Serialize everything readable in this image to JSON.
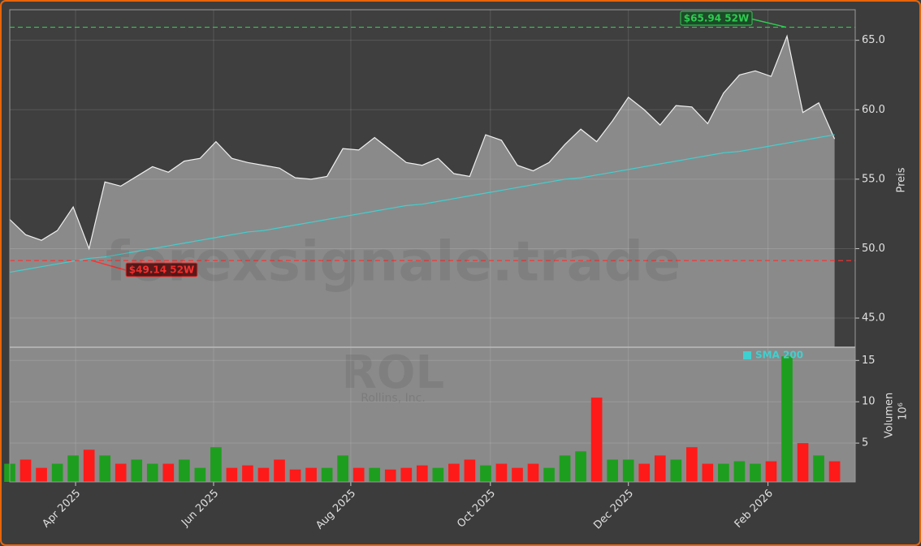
{
  "chart_data": {
    "type": "line",
    "watermark": "forexsignale.trade",
    "ticker": "ROL",
    "company": "Rollins, Inc.",
    "ylabel": "Preis",
    "y2label": "Volumen",
    "y2label_unit": "10⁶",
    "legend": "SMA 200",
    "grid": true,
    "x": [
      0,
      1,
      2,
      3,
      4,
      5,
      6,
      7,
      8,
      9,
      10,
      11,
      12,
      13,
      14,
      15,
      16,
      17,
      18,
      19,
      20,
      21,
      22,
      23,
      24,
      25,
      26,
      27,
      28,
      29,
      30,
      31,
      32,
      33,
      34,
      35,
      36,
      37,
      38,
      39,
      40,
      41,
      42,
      43,
      44,
      45,
      46,
      47,
      48,
      49,
      50,
      51,
      52
    ],
    "xlim": [
      0,
      53.3
    ],
    "xticks": [
      {
        "value": 4.15,
        "label": "Apr 2025"
      },
      {
        "value": 12.85,
        "label": "Jun 2025"
      },
      {
        "value": 21.5,
        "label": "Aug 2025"
      },
      {
        "value": 30.3,
        "label": "Oct 2025"
      },
      {
        "value": 39.0,
        "label": "Dec 2025"
      },
      {
        "value": 47.8,
        "label": "Feb 2026"
      }
    ],
    "ylim": [
      42.9,
      67.2
    ],
    "yticks": [
      {
        "value": 45,
        "label": "45.0"
      },
      {
        "value": 50,
        "label": "50.0"
      },
      {
        "value": 55,
        "label": "55.0"
      },
      {
        "value": 60,
        "label": "60.0"
      },
      {
        "value": 65,
        "label": "65.0"
      }
    ],
    "y2lim": [
      0.3,
      16.6
    ],
    "y2ticks": [
      5,
      10,
      15
    ],
    "up_color": "#1e9e1e",
    "down_color": "#ff1a1a",
    "series": [
      {
        "name": "Close",
        "color": "#f0f0f0",
        "area_color": "#8a8a8a",
        "values": [
          52.1,
          51.0,
          50.6,
          51.3,
          53.0,
          50.0,
          54.8,
          54.5,
          55.2,
          55.9,
          55.5,
          56.3,
          56.5,
          57.7,
          56.5,
          56.2,
          56.0,
          55.8,
          55.1,
          55.0,
          55.2,
          57.2,
          57.1,
          58.0,
          57.1,
          56.2,
          56.0,
          56.5,
          55.4,
          55.2,
          58.2,
          57.8,
          56.0,
          55.6,
          56.2,
          57.5,
          58.6,
          57.7,
          59.2,
          60.9,
          60.0,
          58.9,
          60.3,
          60.2,
          59.0,
          61.2,
          62.5,
          62.8,
          62.4,
          65.3,
          59.8,
          60.5,
          57.9
        ]
      },
      {
        "name": "SMA 200",
        "color": "#40d0d0",
        "values": [
          48.3,
          48.5,
          48.7,
          48.9,
          49.1,
          49.3,
          49.4,
          49.6,
          49.8,
          50.0,
          50.2,
          50.4,
          50.6,
          50.8,
          51.0,
          51.2,
          51.3,
          51.5,
          51.7,
          51.9,
          52.1,
          52.3,
          52.5,
          52.7,
          52.9,
          53.1,
          53.2,
          53.4,
          53.6,
          53.8,
          54.0,
          54.2,
          54.4,
          54.6,
          54.8,
          55.0,
          55.1,
          55.3,
          55.5,
          55.7,
          55.9,
          56.1,
          56.3,
          56.5,
          56.7,
          56.9,
          57.0,
          57.2,
          57.4,
          57.6,
          57.8,
          58.0,
          58.2
        ]
      },
      {
        "name": "Volumen",
        "axis": "y2",
        "values": [
          2.5,
          3,
          2,
          2.5,
          3.5,
          4.2,
          3.5,
          2.5,
          3,
          2.5,
          2.5,
          3,
          2,
          4.5,
          2,
          2.3,
          2,
          3,
          1.8,
          2,
          2,
          3.5,
          2,
          2,
          1.8,
          2,
          2.3,
          2,
          2.5,
          3,
          2.3,
          2.5,
          2,
          2.5,
          2,
          3.5,
          4,
          10.5,
          3,
          3,
          2.5,
          3.5,
          3,
          4.5,
          2.5,
          2.5,
          2.8,
          2.5,
          2.8,
          15.5,
          5,
          3.5,
          2.8
        ]
      }
    ],
    "annotations": [
      {
        "text": "$65.94 52W",
        "value": 65.94,
        "color": "#2ecc50"
      },
      {
        "text": "$49.14 52W",
        "value": 49.14,
        "color": "#ff3030"
      }
    ]
  }
}
